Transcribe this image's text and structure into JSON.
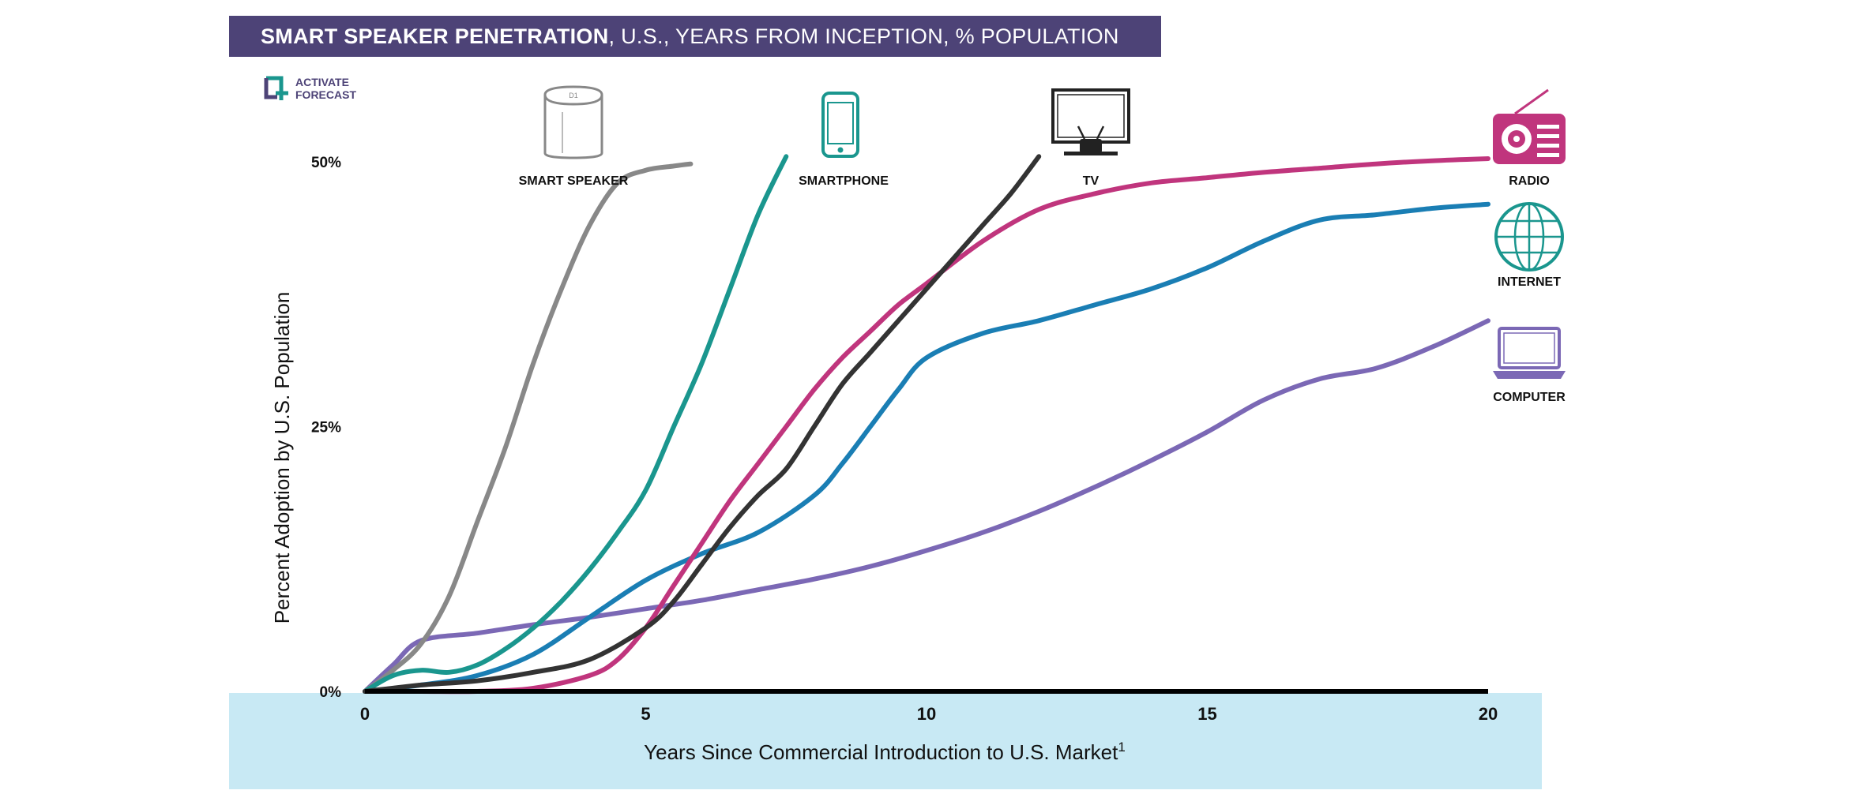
{
  "title": {
    "bold": "SMART SPEAKER PENETRATION",
    "rest": ", U.S., YEARS FROM INCEPTION, % POPULATION"
  },
  "logo": {
    "line1": "ACTIVATE",
    "line2": "FORECAST"
  },
  "colors": {
    "smart_speaker": "#888888",
    "smartphone": "#1a968e",
    "tv": "#333333",
    "radio": "#c0357d",
    "internet": "#1a7eb4",
    "computer": "#7b68b5",
    "title_bg": "#4d4377",
    "band": "#c8e9f4"
  },
  "chart_data": {
    "type": "line",
    "title": "SMART SPEAKER PENETRATION, U.S., YEARS FROM INCEPTION, % POPULATION",
    "xlabel": "Years Since Commercial Introduction to U.S. Market",
    "xlabel_sup": "1",
    "ylabel": "Percent Adoption by U.S. Population",
    "xlim": [
      0,
      20
    ],
    "ylim": [
      0,
      50
    ],
    "x_ticks": [
      "0",
      "5",
      "10",
      "15",
      "20"
    ],
    "x_tick_values": [
      0,
      5,
      10,
      15,
      20
    ],
    "y_ticks": [
      "0%",
      "25%",
      "50%"
    ],
    "y_tick_values": [
      0,
      25,
      50
    ],
    "series": [
      {
        "key": "smart_speaker",
        "name": "SMART SPEAKER",
        "x": [
          0,
          0.5,
          1,
          1.5,
          2,
          2.5,
          3,
          3.5,
          4,
          4.5,
          5,
          5.5,
          5.8
        ],
        "y": [
          0,
          2,
          4.5,
          9,
          16,
          23,
          31,
          38,
          44,
          48,
          49.2,
          49.6,
          49.8
        ]
      },
      {
        "key": "smartphone",
        "name": "SMARTPHONE",
        "x": [
          0,
          0.5,
          1,
          1.5,
          2,
          2.5,
          3,
          3.5,
          4,
          4.5,
          5,
          5.5,
          6,
          6.5,
          7,
          7.5
        ],
        "y": [
          0,
          1.5,
          2,
          1.8,
          2.5,
          4,
          6,
          8.5,
          11.5,
          15,
          19,
          25,
          31,
          38,
          45,
          50.5
        ]
      },
      {
        "key": "tv",
        "name": "TV",
        "x": [
          0,
          1,
          2,
          3,
          4,
          5,
          5.5,
          6,
          6.5,
          7,
          7.5,
          8,
          8.5,
          9,
          9.5,
          10,
          10.5,
          11,
          11.5,
          12
        ],
        "y": [
          0,
          0.6,
          1,
          1.8,
          3,
          6,
          8.5,
          12,
          15.5,
          18.5,
          21,
          25,
          29,
          32,
          35,
          38,
          41,
          44,
          47,
          50.5
        ]
      },
      {
        "key": "radio",
        "name": "RADIO",
        "x": [
          0,
          1,
          2,
          3,
          4,
          4.5,
          5,
          5.5,
          6,
          6.5,
          7,
          7.5,
          8,
          8.5,
          9,
          9.5,
          10,
          11,
          12,
          13,
          14,
          15,
          16,
          17,
          18,
          19,
          20
        ],
        "y": [
          0,
          0,
          0,
          0.3,
          1.5,
          3,
          6,
          10,
          14,
          18,
          21.5,
          25,
          28.5,
          31.5,
          34,
          36.5,
          38.5,
          42.5,
          45.5,
          47,
          48,
          48.5,
          49,
          49.4,
          49.8,
          50.1,
          50.3
        ]
      },
      {
        "key": "internet",
        "name": "INTERNET",
        "x": [
          0,
          1,
          2,
          3,
          4,
          5,
          6,
          7,
          8,
          8.5,
          9,
          9.5,
          10,
          11,
          12,
          13,
          14,
          15,
          16,
          17,
          18,
          19,
          20
        ],
        "y": [
          0,
          0.6,
          1.5,
          3.5,
          7,
          10.5,
          13,
          15,
          18.5,
          21.5,
          25,
          28.5,
          31.5,
          33.8,
          35,
          36.5,
          38,
          40,
          42.5,
          44.5,
          45,
          45.6,
          46
        ]
      },
      {
        "key": "computer",
        "name": "COMPUTER",
        "x": [
          0,
          0.5,
          1,
          2,
          3,
          4,
          5,
          6,
          7,
          8,
          9,
          10,
          11,
          12,
          13,
          14,
          15,
          16,
          17,
          18,
          19,
          20
        ],
        "y": [
          0,
          2.5,
          4.8,
          5.5,
          6.3,
          7,
          7.8,
          8.6,
          9.6,
          10.6,
          11.8,
          13.3,
          15,
          17,
          19.3,
          21.8,
          24.5,
          27.5,
          29.5,
          30.5,
          32.5,
          35
        ]
      }
    ]
  },
  "annotations": [
    {
      "key": "smart_speaker",
      "label": "SMART SPEAKER",
      "icon": "smart-speaker-icon"
    },
    {
      "key": "smartphone",
      "label": "SMARTPHONE",
      "icon": "smartphone-icon"
    },
    {
      "key": "tv",
      "label": "TV",
      "icon": "tv-icon"
    },
    {
      "key": "radio",
      "label": "RADIO",
      "icon": "radio-icon"
    },
    {
      "key": "internet",
      "label": "INTERNET",
      "icon": "globe-icon"
    },
    {
      "key": "computer",
      "label": "COMPUTER",
      "icon": "laptop-icon"
    }
  ]
}
